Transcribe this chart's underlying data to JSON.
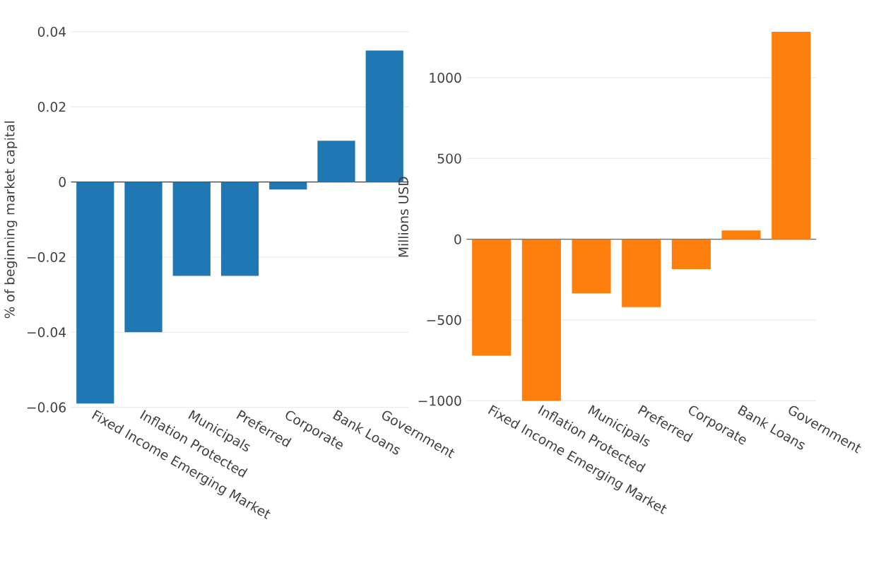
{
  "chart_data": [
    {
      "type": "bar",
      "ylabel": "% of beginning market capital",
      "categories": [
        "Fixed Income Emerging Market",
        "Inflation Protected",
        "Municipals",
        "Preferred",
        "Corporate",
        "Bank Loans",
        "Government"
      ],
      "values": [
        -0.059,
        -0.04,
        -0.025,
        -0.025,
        -0.002,
        0.011,
        0.035
      ],
      "color": "#1f77b4",
      "ylim": [
        -0.06,
        0.04
      ],
      "yticks": [
        {
          "value": -0.06,
          "label": "−0.06"
        },
        {
          "value": -0.04,
          "label": "−0.04"
        },
        {
          "value": -0.02,
          "label": "−0.02"
        },
        0,
        0.02,
        0.04
      ],
      "grid": "y"
    },
    {
      "type": "bar",
      "ylabel": "Millions USD",
      "categories": [
        "Fixed Income Emerging Market",
        "Inflation Protected",
        "Municipals",
        "Preferred",
        "Corporate",
        "Bank Loans",
        "Government"
      ],
      "values": [
        -720,
        -1000,
        -335,
        -420,
        -185,
        55,
        1285
      ],
      "color": "#ff7f0e",
      "ylim": [
        -1010,
        1285
      ],
      "yticks": [
        {
          "value": -1000,
          "label": "−1000"
        },
        {
          "value": -500,
          "label": "−500"
        },
        0,
        500,
        1000
      ],
      "grid": "y"
    }
  ]
}
